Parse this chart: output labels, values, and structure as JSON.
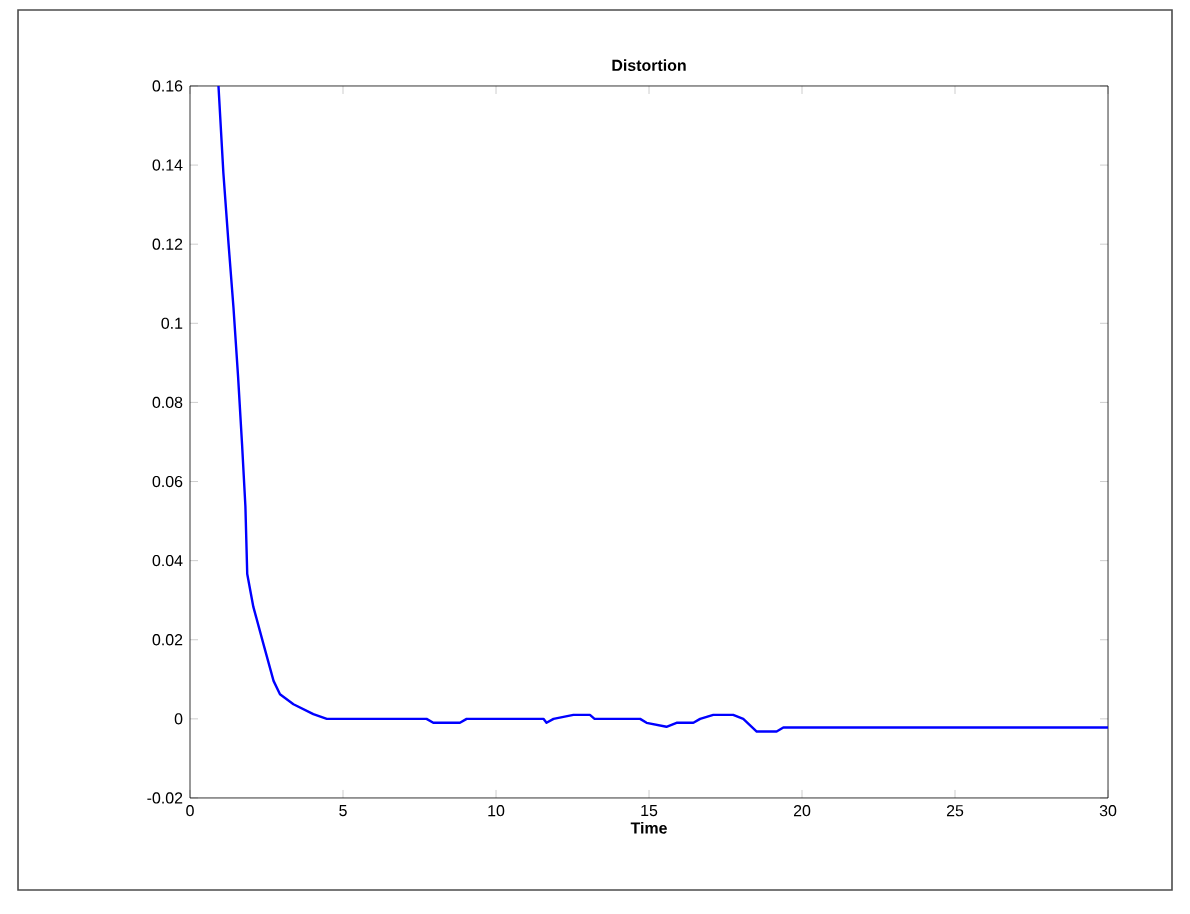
{
  "chart_data": {
    "type": "line",
    "title": "Distortion",
    "xlabel": "Time",
    "xlim": [
      0,
      30
    ],
    "ylim": [
      -0.02,
      0.16
    ],
    "xticks": [
      0,
      5,
      10,
      15,
      20,
      25,
      30
    ],
    "yticks": [
      -0.02,
      0,
      0.02,
      0.04,
      0.06,
      0.08,
      0.1,
      0.12,
      0.14,
      0.16
    ],
    "marker": "none",
    "line_style": "solid",
    "series": [
      {
        "color": "#0000ff",
        "x": [
          0.93,
          1.09,
          1.26,
          1.42,
          1.57,
          1.7,
          1.81,
          1.87,
          2.07,
          2.4,
          2.73,
          2.94,
          3.38,
          4.03,
          4.47,
          7.73,
          7.95,
          8.82,
          9.04,
          11.55,
          11.65,
          11.88,
          12.53,
          13.07,
          13.22,
          14.71,
          14.92,
          15.57,
          15.9,
          16.45,
          16.67,
          17.1,
          17.75,
          18.08,
          18.52,
          19.17,
          19.39,
          30
        ],
        "values": [
          0.16,
          0.138,
          0.12,
          0.104,
          0.0866,
          0.0695,
          0.0537,
          0.0366,
          0.0283,
          0.0189,
          0.0096,
          0.0062,
          0.0037,
          0.0012,
          0,
          0,
          -0.001,
          -0.001,
          0,
          0,
          -0.001,
          0,
          0.001,
          0.001,
          0,
          0,
          -0.001,
          -0.002,
          -0.001,
          -0.001,
          0,
          0.001,
          0.001,
          0,
          -0.0032,
          -0.0032,
          -0.0022,
          -0.0022
        ]
      }
    ]
  }
}
